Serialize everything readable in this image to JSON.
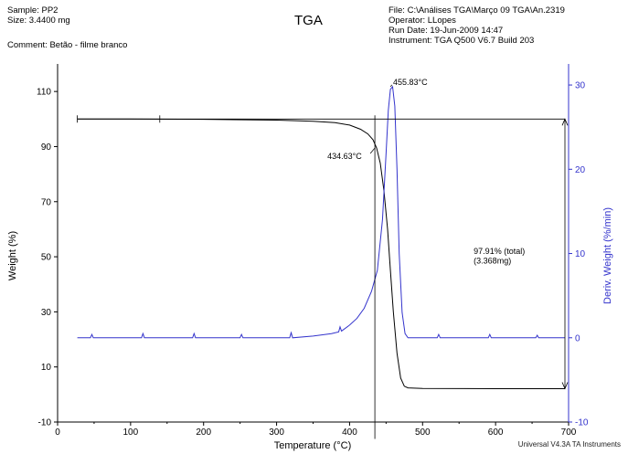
{
  "header": {
    "sample": "Sample: PP2",
    "size": "Size: 3.4400 mg",
    "comment": "Comment: Betão - filme branco",
    "title": "TGA",
    "file": "File: C:\\Análises TGA\\Março 09 TGA\\An.2319",
    "operator": "Operator: LLopes",
    "run_date": "Run Date: 19-Jun-2009 14:47",
    "instrument": "Instrument: TGA Q500 V6.7 Build 203"
  },
  "footer": "Universal V4.3A TA Instruments",
  "colors": {
    "weight": "#000000",
    "deriv": "#3333cc",
    "axis_right": "#3333cc"
  },
  "chart_data": {
    "type": "line",
    "title": "TGA",
    "xlabel": "Temperature (°C)",
    "ylabel": "Weight (%)",
    "y2label": "Deriv. Weight (%/min)",
    "xlim": [
      0,
      700
    ],
    "ylim": [
      -10,
      120
    ],
    "y2lim": [
      -10,
      32.5
    ],
    "x_ticks": [
      0,
      100,
      200,
      300,
      400,
      500,
      600,
      700
    ],
    "x_tick_labels": [
      "0",
      "100",
      "200",
      "300",
      "400",
      "500",
      "600",
      "700"
    ],
    "y_ticks": [
      -10,
      10,
      30,
      50,
      70,
      90,
      110
    ],
    "y_tick_labels": [
      "-10",
      "10",
      "30",
      "50",
      "70",
      "90",
      "110"
    ],
    "y2_ticks": [
      -10,
      0,
      10,
      20,
      30
    ],
    "y2_tick_labels": [
      "-10",
      "0",
      "10",
      "20",
      "30"
    ],
    "series": [
      {
        "name": "Weight (%)",
        "axis": "left",
        "x": [
          27,
          100,
          200,
          300,
          350,
          380,
          400,
          415,
          425,
          432,
          437,
          442,
          447,
          452,
          456,
          460,
          465,
          470,
          475,
          480,
          500,
          600,
          695
        ],
        "y": [
          100.0,
          100.0,
          99.9,
          99.6,
          99.2,
          98.7,
          97.8,
          96.3,
          94.6,
          92.5,
          89.5,
          84.0,
          74.0,
          60.0,
          45.0,
          30.0,
          15.0,
          6.0,
          3.0,
          2.4,
          2.2,
          2.1,
          2.1
        ]
      },
      {
        "name": "Deriv. Weight (%/min)",
        "axis": "right",
        "x": [
          27,
          45,
          47,
          49,
          115,
          117,
          119,
          185,
          187,
          189,
          250,
          252,
          254,
          318,
          320,
          322,
          350,
          375,
          385,
          387,
          389,
          400,
          410,
          420,
          430,
          438,
          445,
          450,
          453,
          456,
          459,
          462,
          465,
          468,
          472,
          476,
          480,
          500,
          520,
          522,
          524,
          590,
          592,
          594,
          655,
          657,
          659,
          695
        ],
        "y": [
          0.0,
          0.0,
          0.4,
          0.0,
          0.0,
          0.5,
          0.0,
          0.0,
          0.5,
          0.0,
          0.0,
          0.4,
          0.0,
          0.0,
          0.6,
          0.0,
          0.2,
          0.5,
          0.7,
          1.3,
          0.8,
          1.5,
          2.3,
          3.5,
          5.5,
          8.0,
          14.0,
          22.0,
          27.0,
          29.5,
          29.8,
          27.5,
          20.0,
          10.0,
          3.0,
          0.5,
          0.0,
          0.0,
          0.0,
          0.4,
          0.0,
          0.0,
          0.4,
          0.0,
          0.0,
          0.3,
          0.0,
          0.0
        ]
      }
    ],
    "annotations": [
      {
        "text": "455.83°C",
        "x": 455.83,
        "y": 29.8,
        "axis": "right"
      },
      {
        "text": "434.63°C",
        "x": 434.63,
        "y": 89.5,
        "axis": "left"
      },
      {
        "text": "97.91% (total)",
        "x": 570,
        "y": 51,
        "axis": "left"
      },
      {
        "text": "(3.368mg)",
        "x": 570,
        "y": 47.5,
        "axis": "left"
      }
    ],
    "step_bracket": {
      "x_start": 27,
      "x_end": 695,
      "y_top": 100.0,
      "y_bottom": 2.1,
      "onset_x": 434.63
    },
    "grid": false,
    "legend": "none"
  }
}
